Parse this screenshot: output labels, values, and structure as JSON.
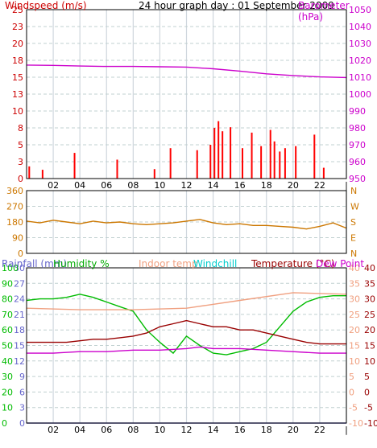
{
  "title": "24 hour graph day : 01 September 2009",
  "colors": {
    "wind": "#cc0000",
    "gust": "#ff0000",
    "wind_avg": "#1a1aa0",
    "barometer": "#cc00cc",
    "winddir": "#cc7700",
    "rainfall": "#6666cc",
    "humidity": "#00bb00",
    "indoor": "#f0a080",
    "windchill": "#00cccc",
    "temperature": "#990000",
    "dewpoint": "#cc00cc",
    "grid": "#cfd8e0",
    "frame": "#000000"
  },
  "x_hour_labels": [
    "02",
    "04",
    "06",
    "08",
    "10",
    "12",
    "14",
    "16",
    "18",
    "20",
    "22",
    ""
  ],
  "panel1": {
    "left_label": "Windspeed (m/s)",
    "right_label": "Barometer (hPa)",
    "left_ticks": [
      "25",
      "23",
      "20",
      "18",
      "15",
      "13",
      "10",
      "8",
      "5",
      "3",
      "0"
    ],
    "right_ticks": [
      "1050",
      "1040",
      "1030",
      "1020",
      "1010",
      "1000",
      "990",
      "980",
      "970",
      "960",
      "950"
    ]
  },
  "panel2": {
    "left_ticks": [
      "360",
      "270",
      "180",
      "90",
      "0"
    ],
    "right_ticks": [
      "N",
      "W",
      "S",
      "E",
      "N"
    ]
  },
  "panel3": {
    "labels": {
      "rainfall": "Rainfall (mm)",
      "humidity": "Humidity %",
      "indoor": "Indoor temp",
      "windchill": "Windchill",
      "temperature": "Temperature (°C)",
      "dewpoint": "Dew Point"
    },
    "rain_ticks": [
      "30",
      "27",
      "24",
      "21",
      "18",
      "15",
      "12",
      "9",
      "6",
      "3",
      "0"
    ],
    "hum_ticks": [
      "100",
      "90",
      "80",
      "70",
      "60",
      "50",
      "40",
      "30",
      "20",
      "10",
      "0"
    ],
    "temp_ticks": [
      "40",
      "35",
      "30",
      "25",
      "20",
      "15",
      "10",
      "5",
      "0",
      "-5",
      "-10"
    ]
  },
  "chart_data": [
    {
      "type": "line",
      "xlabel": "",
      "ylabel": "Windspeed (m/s)",
      "x_range_hours": [
        0,
        24
      ],
      "ylim": [
        0,
        25
      ],
      "y2label": "Barometer (hPa)",
      "y2lim": [
        950,
        1050
      ],
      "series": [
        {
          "name": "Barometer (hPa)",
          "axis": "right",
          "x": [
            0,
            2,
            4,
            6,
            8,
            10,
            12,
            14,
            16,
            18,
            20,
            22,
            24
          ],
          "values": [
            1017.2,
            1017.0,
            1016.6,
            1016.4,
            1016.4,
            1016.2,
            1016.0,
            1015.0,
            1013.6,
            1012.0,
            1011.0,
            1010.2,
            1009.8
          ]
        }
      ],
      "wind_bars": {
        "x": [
          0.2,
          1.2,
          3.6,
          6.8,
          9.6,
          10.8,
          12.8,
          13.8,
          14.1,
          14.4,
          14.7,
          15.3,
          16.2,
          16.9,
          17.6,
          18.3,
          18.6,
          19.0,
          19.4,
          20.2,
          21.6,
          22.3
        ],
        "values": [
          1.8,
          1.3,
          3.8,
          2.8,
          1.4,
          4.5,
          4.2,
          5.0,
          7.5,
          8.5,
          7.0,
          7.6,
          4.5,
          6.8,
          4.8,
          7.2,
          5.5,
          4.0,
          4.5,
          4.8,
          6.5,
          1.6
        ]
      }
    },
    {
      "type": "line",
      "ylabel": "",
      "x_range_hours": [
        0,
        24
      ],
      "ylim": [
        0,
        360
      ],
      "series": [
        {
          "name": "",
          "x": [
            0,
            1,
            2,
            3,
            4,
            5,
            6,
            7,
            8,
            9,
            10,
            11,
            12,
            13,
            14,
            15,
            16,
            17,
            18,
            19,
            20,
            21,
            22,
            23,
            24
          ],
          "values": [
            185,
            175,
            190,
            180,
            170,
            185,
            175,
            180,
            170,
            165,
            170,
            175,
            185,
            195,
            175,
            165,
            170,
            160,
            160,
            155,
            150,
            140,
            155,
            175,
            145
          ]
        }
      ]
    },
    {
      "type": "line",
      "x_range_hours": [
        0,
        24
      ],
      "ylim": [
        -10,
        40
      ],
      "y_left_humidity": [
        0,
        100
      ],
      "y_left_rain": [
        0,
        30
      ],
      "series": [
        {
          "name": "Humidity %",
          "axis": "humidity",
          "x": [
            0,
            1,
            2,
            3,
            4,
            5,
            6,
            7,
            8,
            9,
            10,
            11,
            12,
            13,
            14,
            15,
            16,
            17,
            18,
            19,
            20,
            21,
            22,
            23,
            24
          ],
          "values": [
            79,
            80,
            80,
            81,
            83,
            81,
            78,
            75,
            72,
            60,
            52,
            45,
            56,
            50,
            45,
            44,
            46,
            48,
            52,
            62,
            72,
            78,
            81,
            82,
            82
          ]
        },
        {
          "name": "Indoor temp",
          "axis": "temp",
          "x": [
            0,
            4,
            8,
            12,
            16,
            20,
            24
          ],
          "values": [
            27,
            26.5,
            26.5,
            27,
            29.5,
            32,
            31.5
          ]
        },
        {
          "name": "Temperature (°C)",
          "axis": "temp",
          "x": [
            0,
            1,
            2,
            3,
            4,
            5,
            6,
            7,
            8,
            9,
            10,
            11,
            12,
            13,
            14,
            15,
            16,
            17,
            18,
            19,
            20,
            21,
            22,
            23,
            24
          ],
          "values": [
            16,
            16,
            16,
            16,
            16.5,
            17,
            17,
            17.5,
            18,
            19,
            21,
            22,
            23,
            22,
            21,
            21,
            20,
            20,
            19,
            18,
            17,
            16,
            15.5,
            15.5,
            15.5
          ]
        },
        {
          "name": "Dew Point",
          "axis": "temp",
          "x": [
            0,
            2,
            4,
            6,
            8,
            10,
            12,
            13,
            14,
            16,
            18,
            20,
            22,
            24
          ],
          "values": [
            12.5,
            12.5,
            13,
            13,
            13.5,
            13.5,
            14,
            14.5,
            14,
            14,
            13.5,
            13,
            12.5,
            12.5
          ]
        },
        {
          "name": "Rainfall (mm)",
          "axis": "rain",
          "x": [
            0,
            24
          ],
          "values": [
            0,
            0
          ]
        }
      ]
    }
  ]
}
